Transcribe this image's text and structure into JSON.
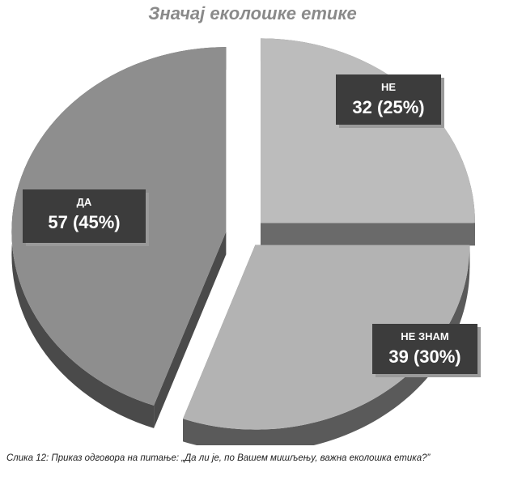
{
  "chart_data": {
    "type": "pie",
    "title": "Значај еколошке етике",
    "slices": [
      {
        "label": "НЕ",
        "value": 32,
        "percent_label": "32 (25%)",
        "color": "#bcbcbc"
      },
      {
        "label": "НЕ ЗНАМ",
        "value": 39,
        "percent_label": "39 (30%)",
        "color": "#b3b3b3"
      },
      {
        "label": "ДА",
        "value": 57,
        "percent_label": "57 (45%)",
        "color": "#8e8e8e"
      }
    ],
    "label_box_color": "#3c3c3c"
  },
  "caption": "Слика 12: Приказ одговора на питање: „Да ли је, по Вашем мишљењу, важна еколошка етика?”"
}
